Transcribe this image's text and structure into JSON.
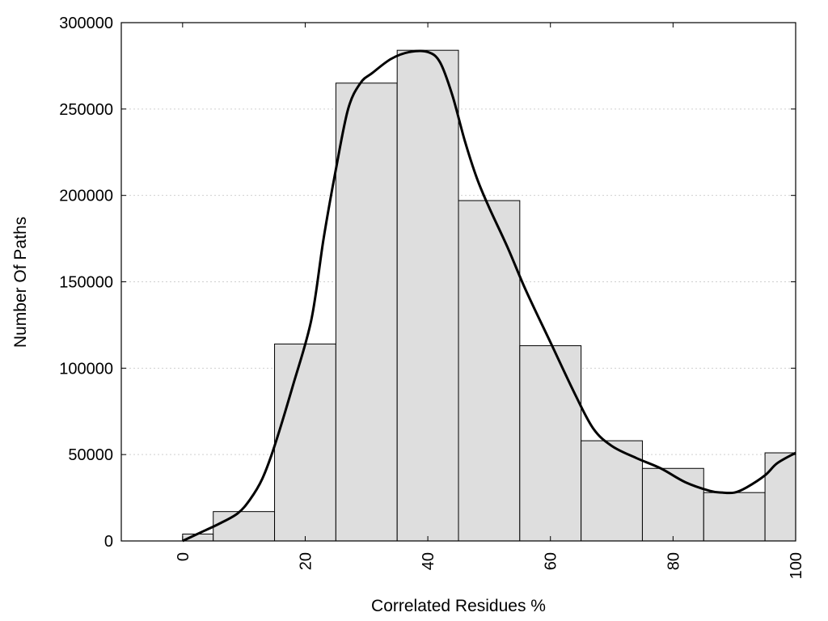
{
  "chart_data": {
    "type": "bar",
    "xlabel": "Correlated Residues %",
    "ylabel": "Number Of Paths",
    "xlim": [
      -10,
      100
    ],
    "ylim": [
      0,
      300000
    ],
    "grid": "horizontal dotted",
    "x_ticks": [
      0,
      20,
      40,
      60,
      80,
      100
    ],
    "y_ticks": [
      0,
      50000,
      100000,
      150000,
      200000,
      250000,
      300000
    ],
    "x_tick_labels": [
      "0",
      "20",
      "40",
      "60",
      "80",
      "100"
    ],
    "y_tick_labels": [
      "0",
      "50000",
      "100000",
      "150000",
      "200000",
      "250000",
      "300000"
    ],
    "bins": [
      {
        "x0": 0,
        "x1": 5,
        "value": 4000
      },
      {
        "x0": 5,
        "x1": 15,
        "value": 17000
      },
      {
        "x0": 15,
        "x1": 25,
        "value": 114000
      },
      {
        "x0": 25,
        "x1": 35,
        "value": 265000
      },
      {
        "x0": 35,
        "x1": 45,
        "value": 284000
      },
      {
        "x0": 45,
        "x1": 55,
        "value": 197000
      },
      {
        "x0": 55,
        "x1": 65,
        "value": 113000
      },
      {
        "x0": 65,
        "x1": 75,
        "value": 58000
      },
      {
        "x0": 75,
        "x1": 85,
        "value": 42000
      },
      {
        "x0": 85,
        "x1": 95,
        "value": 28000
      },
      {
        "x0": 95,
        "x1": 100,
        "value": 51000
      }
    ],
    "density_curve": {
      "x": [
        0,
        3,
        6,
        9,
        11,
        13,
        15,
        18,
        21,
        23,
        25,
        27,
        29,
        31,
        34,
        37,
        40,
        42,
        44,
        46,
        48,
        50,
        53,
        56,
        60,
        64,
        67,
        70,
        74,
        78,
        82,
        86,
        88,
        90,
        92,
        95,
        97,
        100
      ],
      "y": [
        0,
        5000,
        10000,
        16000,
        24000,
        36000,
        55000,
        90000,
        128000,
        175000,
        215000,
        250000,
        265000,
        271000,
        279000,
        283000,
        283000,
        277000,
        258000,
        232000,
        210000,
        193000,
        170000,
        145000,
        115000,
        85000,
        65000,
        55000,
        48000,
        42000,
        34000,
        29000,
        28000,
        28000,
        31000,
        38000,
        45000,
        51000
      ]
    }
  }
}
